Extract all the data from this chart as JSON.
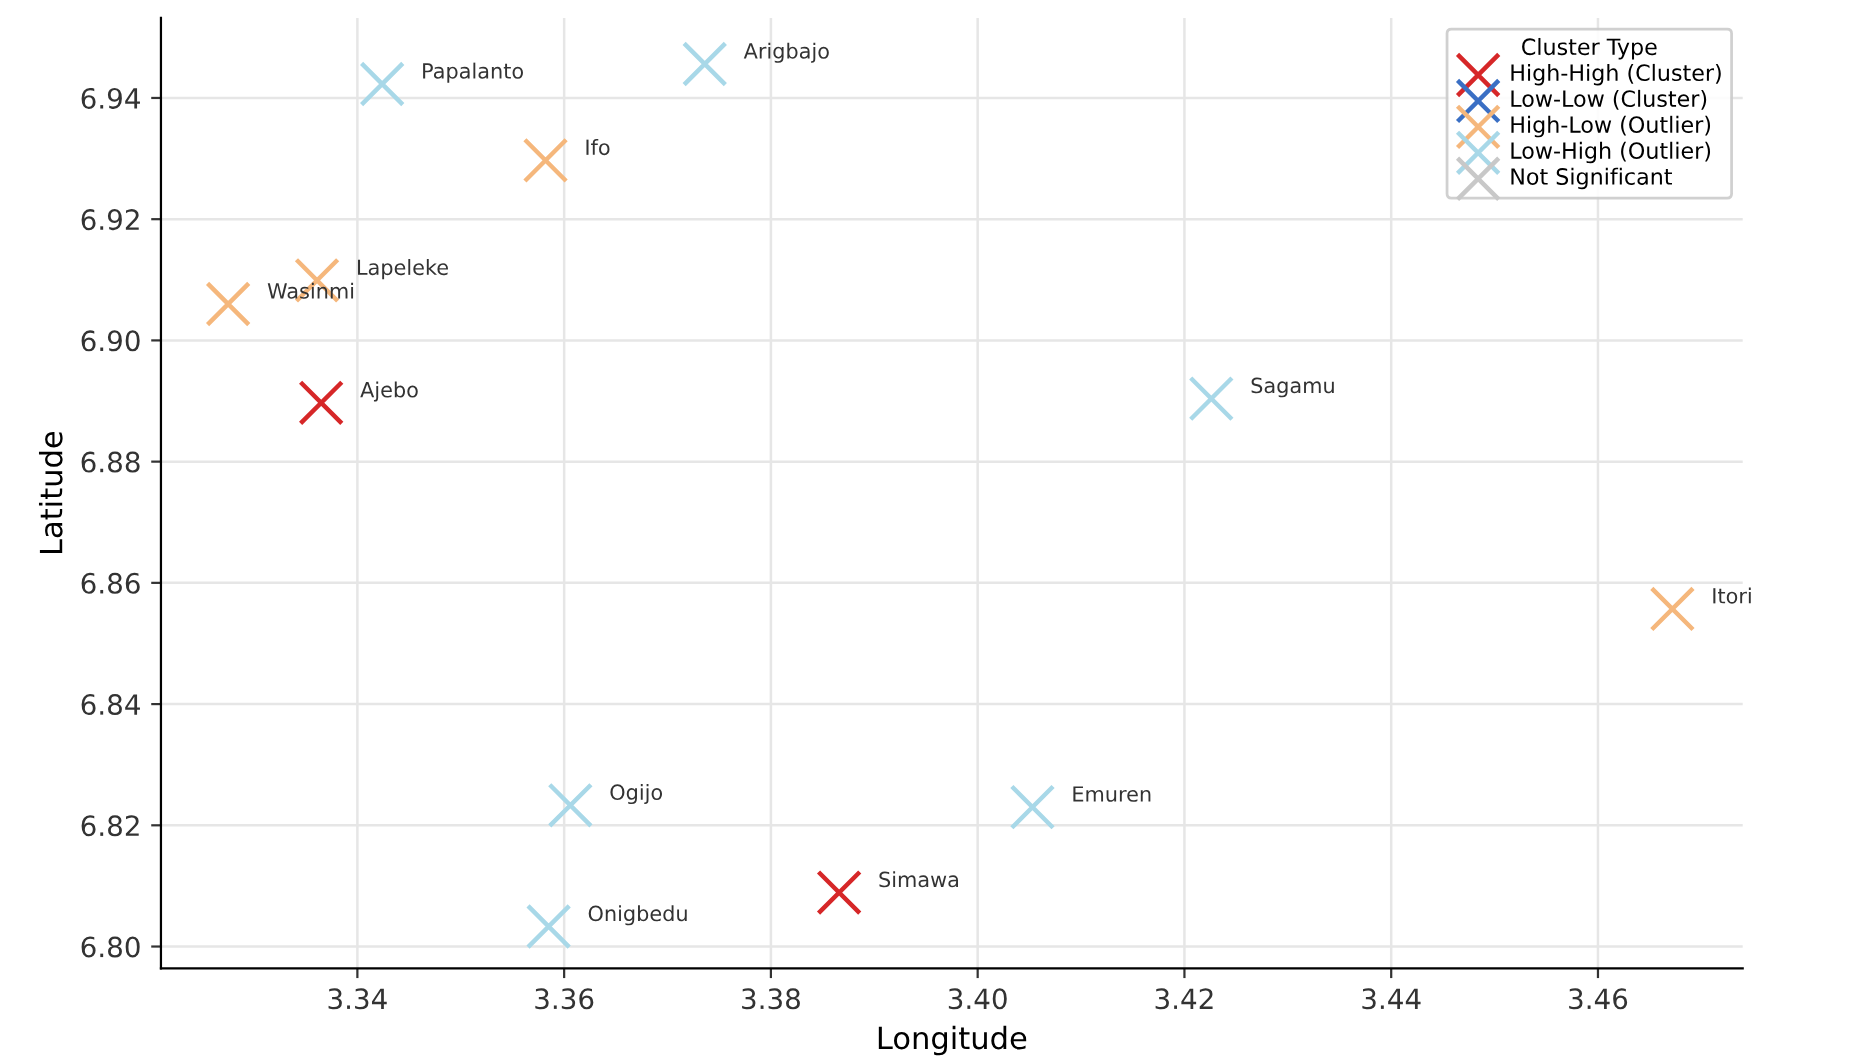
{
  "chart_data": {
    "type": "scatter",
    "xlabel": "Longitude",
    "ylabel": "Latitude",
    "legend_title": "Cluster Type",
    "legend": "top right",
    "grid": true,
    "marker": "cross",
    "xlim": [
      3.321,
      3.474
    ],
    "ylim": [
      6.7964,
      6.9532
    ],
    "xticks": [
      3.34,
      3.36,
      3.38,
      {
        "value": 3.4,
        "label": "3.40"
      },
      3.42,
      3.44,
      3.46
    ],
    "yticks": [
      {
        "value": 6.8,
        "label": "6.80"
      },
      6.82,
      6.84,
      6.86,
      6.88,
      {
        "value": 6.9,
        "label": "6.90"
      },
      6.92,
      6.94
    ],
    "series": [
      {
        "name": "High-High (Cluster)",
        "color": "#d62728",
        "x": [
          3.3365,
          3.3866
        ],
        "values": [
          6.8897,
          6.8089
        ]
      },
      {
        "name": "Low-Low (Cluster)",
        "color": "#3a6fc4"
      },
      {
        "name": "High-Low (Outlier)",
        "color": "#f5b77c",
        "x": [
          3.3582,
          3.3361,
          3.3275,
          3.4672
        ],
        "values": [
          6.9297,
          6.9099,
          6.906,
          6.8557
        ]
      },
      {
        "name": "Low-High (Outlier)",
        "color": "#a8d8e8",
        "x": [
          3.3424,
          3.3736,
          3.4226,
          3.3606,
          3.3585,
          3.4053
        ],
        "values": [
          6.9423,
          6.9456,
          6.8904,
          6.8233,
          6.8033,
          6.823
        ]
      },
      {
        "name": "Not Significant",
        "color": "#c8c8c8"
      }
    ],
    "annotations": [
      {
        "text": "Ajebo",
        "x": 3.3365,
        "y": 6.8897
      },
      {
        "text": "Simawa",
        "x": 3.3866,
        "y": 6.8089
      },
      {
        "text": "Ifo",
        "x": 3.3582,
        "y": 6.9297
      },
      {
        "text": "Lapeleke",
        "x": 3.3361,
        "y": 6.9099
      },
      {
        "text": "Wasinmi",
        "x": 3.3275,
        "y": 6.906
      },
      {
        "text": "Itori",
        "x": 3.4672,
        "y": 6.8557
      },
      {
        "text": "Papalanto",
        "x": 3.3424,
        "y": 6.9423
      },
      {
        "text": "Arigbajo",
        "x": 3.3736,
        "y": 6.9456
      },
      {
        "text": "Sagamu",
        "x": 3.4226,
        "y": 6.8904
      },
      {
        "text": "Ogijo",
        "x": 3.3606,
        "y": 6.8233
      },
      {
        "text": "Onigbedu",
        "x": 3.3585,
        "y": 6.8033
      },
      {
        "text": "Emuren",
        "x": 3.4053,
        "y": 6.823
      }
    ]
  }
}
